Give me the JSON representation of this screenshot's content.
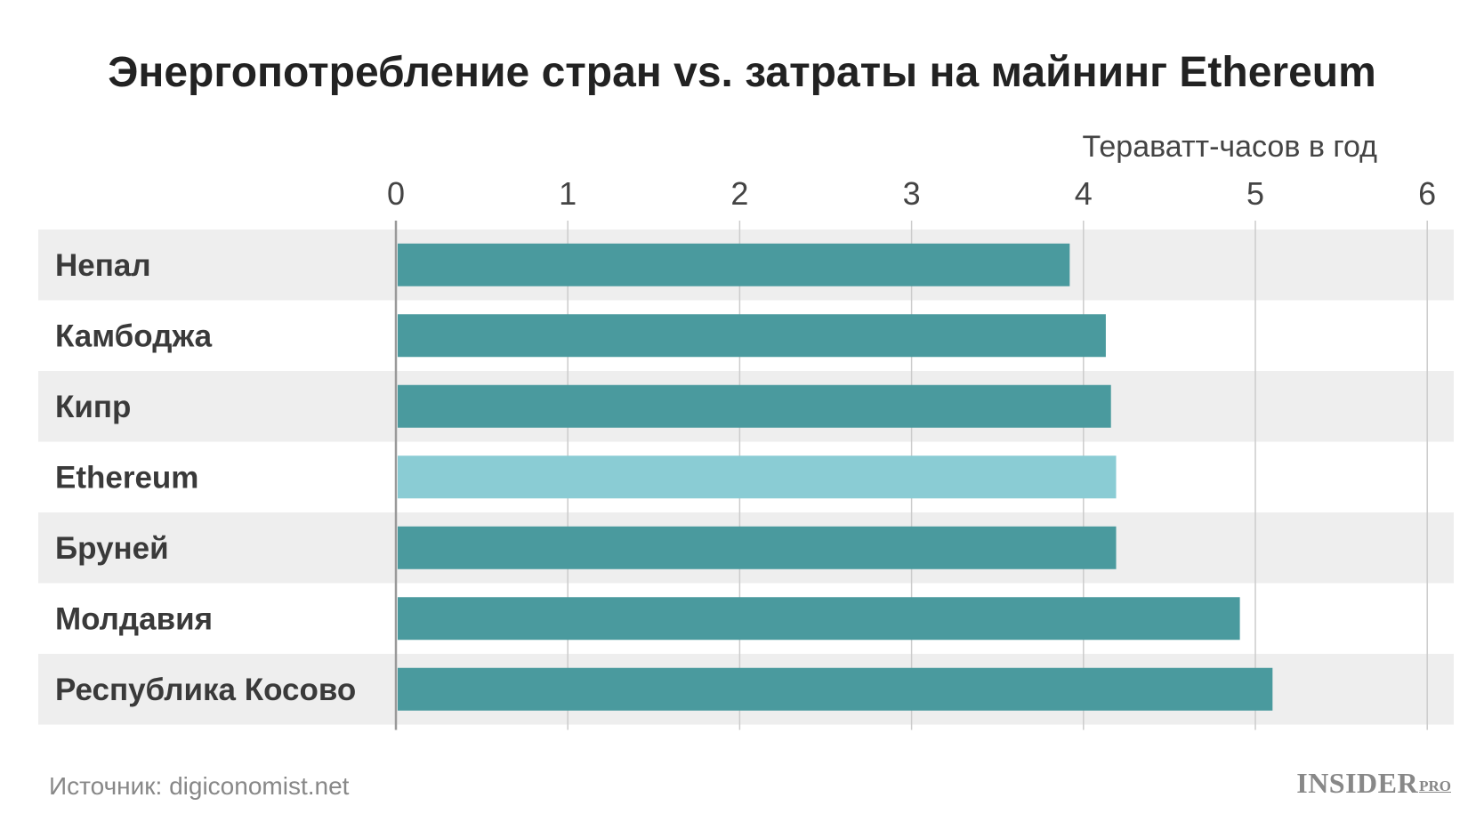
{
  "chart_data": {
    "type": "bar",
    "orientation": "horizontal",
    "title": "Энергопотребление стран vs. затраты на майнинг Ethereum",
    "unit_label": "Тераватт-часов в год",
    "categories": [
      "Непал",
      "Камбоджа",
      "Кипр",
      "Ethereum",
      "Бруней",
      "Молдавия",
      "Республика Косово"
    ],
    "values": [
      3.92,
      4.13,
      4.16,
      4.19,
      4.19,
      4.91,
      5.1
    ],
    "highlight": "Ethereum",
    "xlim": [
      0,
      6
    ],
    "xticks": [
      "0",
      "1",
      "2",
      "3",
      "4",
      "5",
      "6"
    ],
    "grid": true,
    "axis_position": "top",
    "colors": {
      "bar": "#4a9a9e",
      "highlight_bar": "#8accd4",
      "row_band": "#eeeeee",
      "grid": "#cccccc",
      "zero_line": "#999999"
    }
  },
  "footer": {
    "source": "Источник: digiconomist.net",
    "logo_main": "INSIDER",
    "logo_sub": "PRO"
  }
}
